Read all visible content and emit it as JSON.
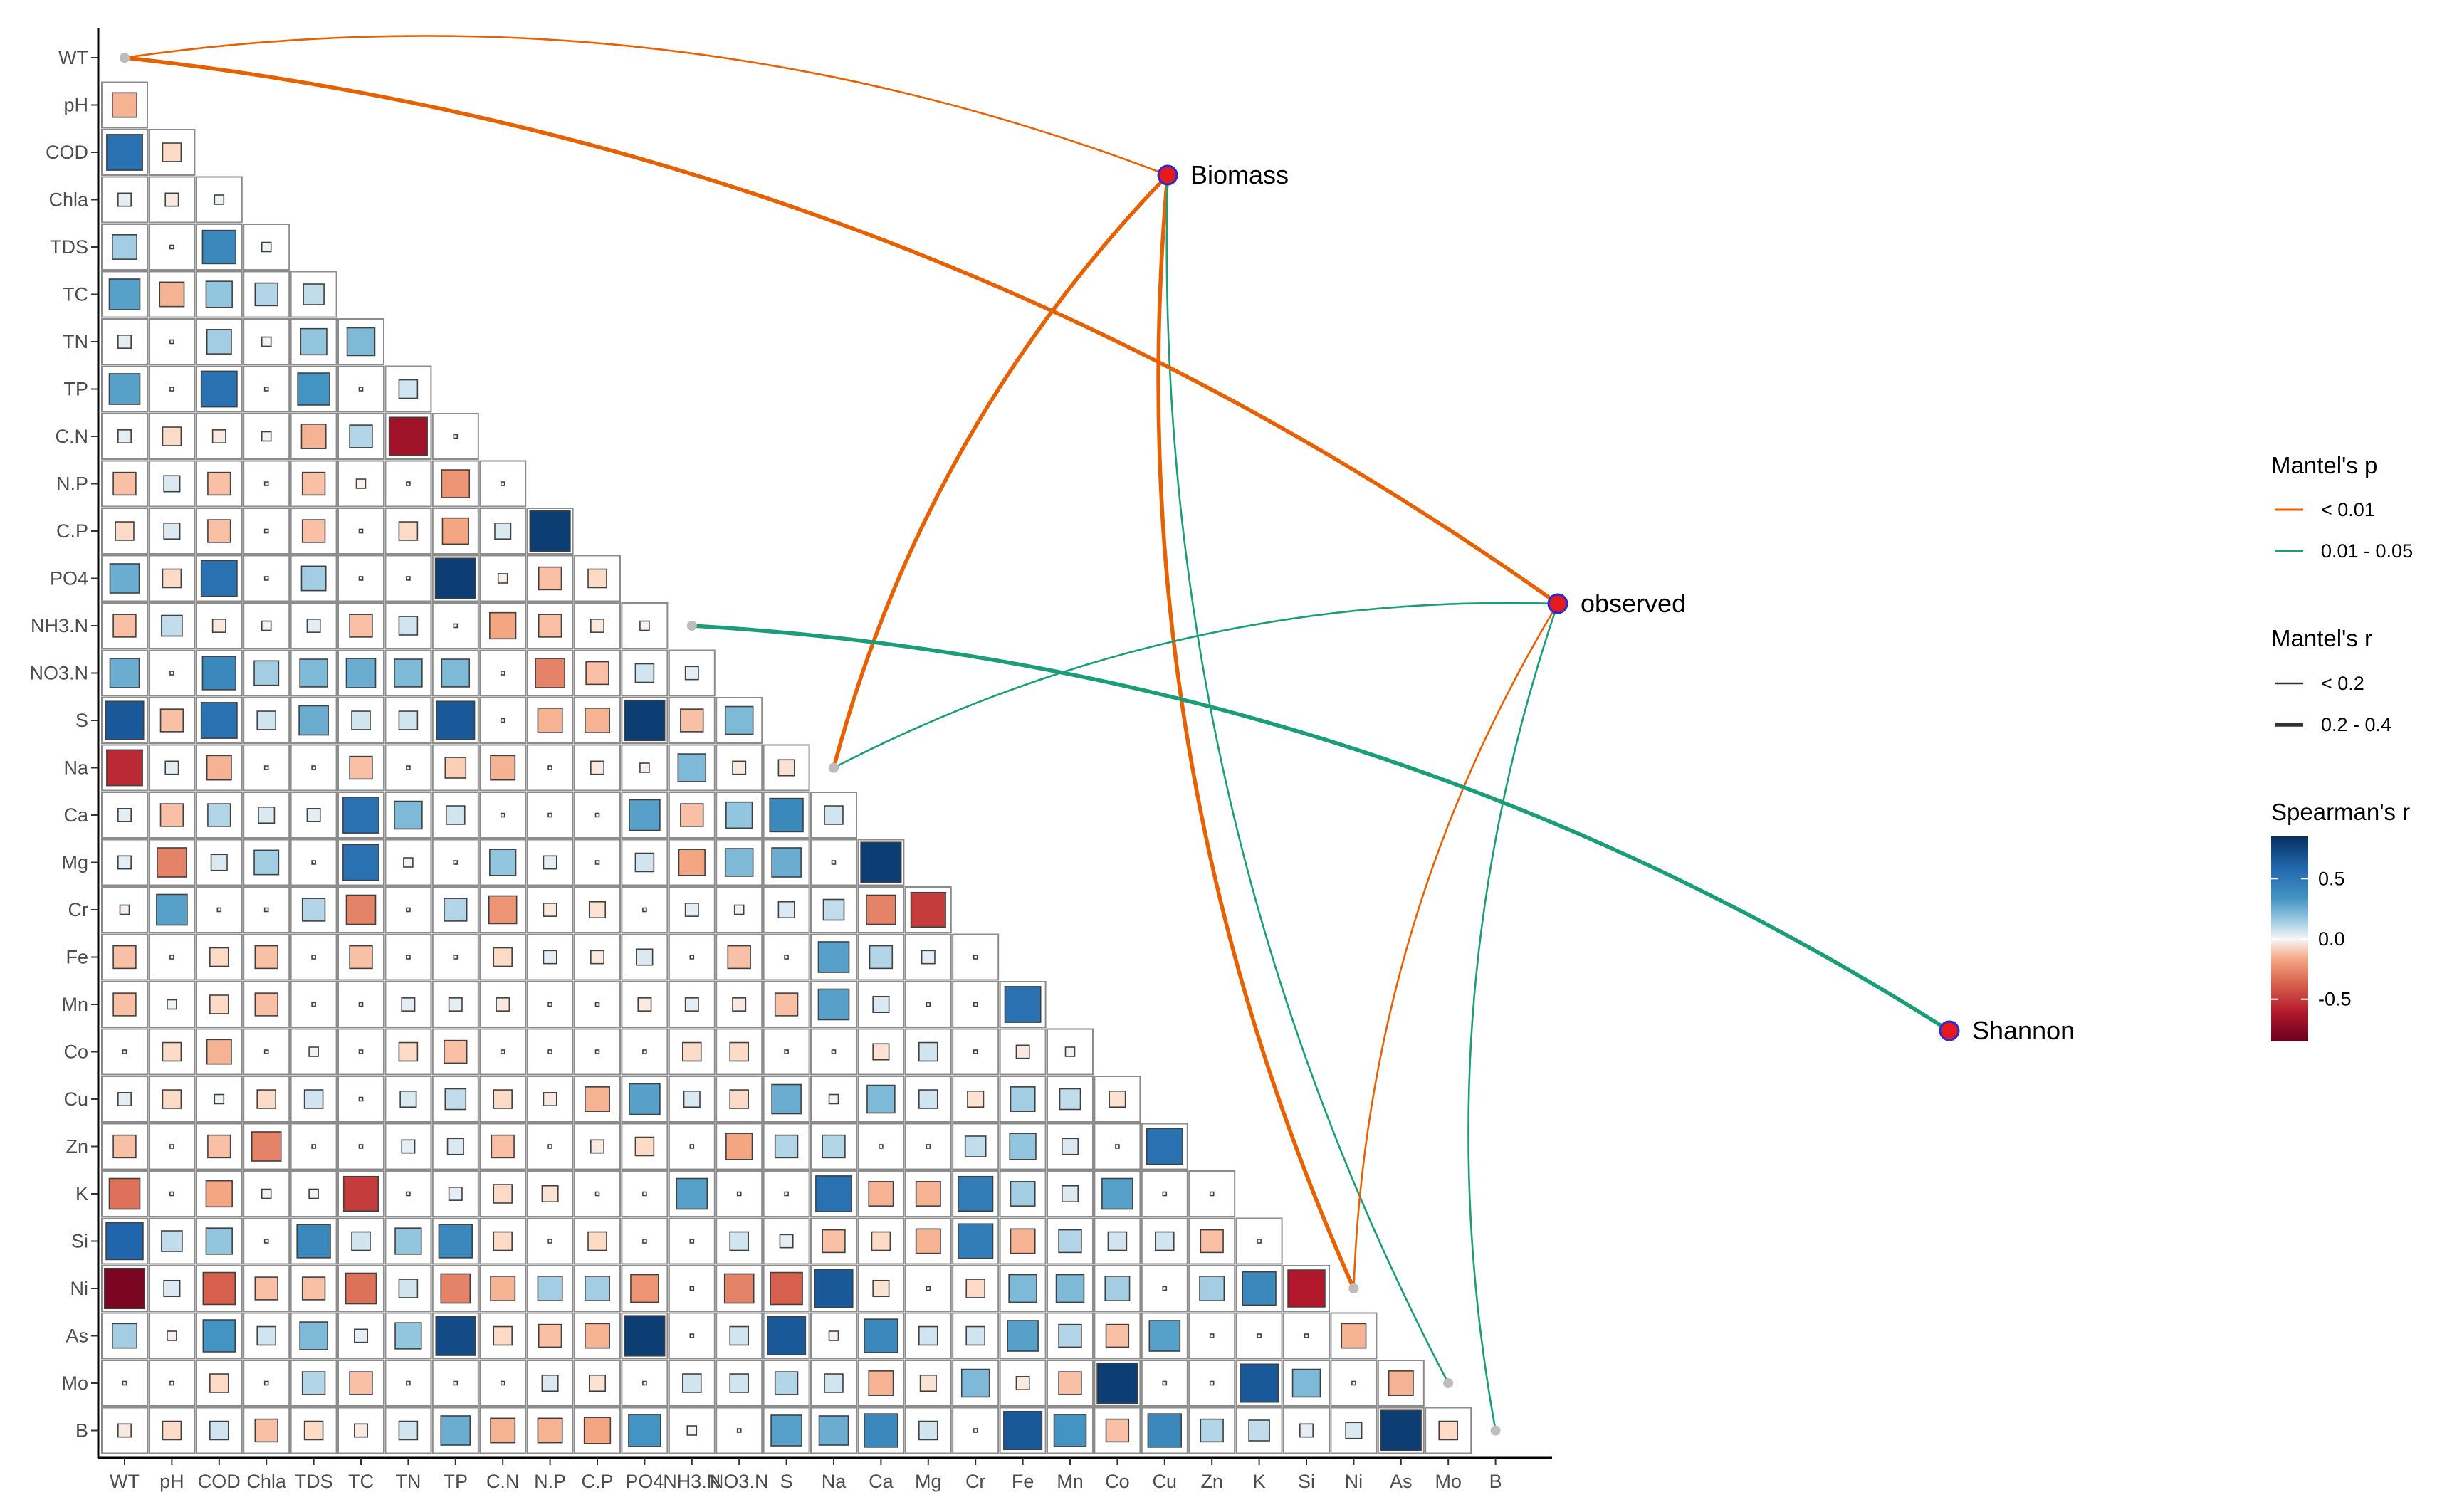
{
  "chart_data": {
    "type": "heatmap",
    "title": "",
    "variables": [
      "WT",
      "pH",
      "COD",
      "Chla",
      "TDS",
      "TC",
      "TN",
      "TP",
      "C.N",
      "N.P",
      "C.P",
      "PO4",
      "NH3.N",
      "NO3.N",
      "S",
      "Na",
      "Ca",
      "Mg",
      "Cr",
      "Fe",
      "Mn",
      "Co",
      "Cu",
      "Zn",
      "K",
      "Si",
      "Ni",
      "As",
      "Mo",
      "B"
    ],
    "x_tick_labels": [
      "WT",
      "pH",
      "COD",
      "Chla",
      "TDS",
      "TC",
      "TN",
      "TP",
      "C.N",
      "N.P",
      "C.P",
      "PO4",
      "NH3.N",
      "NO3.N",
      "S",
      "Na",
      "Ca",
      "Mg",
      "Cr",
      "Fe",
      "Mn",
      "Co",
      "Cu",
      "Zn",
      "K",
      "Si",
      "Ni",
      "As",
      "Mo",
      "B"
    ],
    "y_tick_labels": [
      "WT",
      "pH",
      "COD",
      "Chla",
      "TDS",
      "TC",
      "TN",
      "TP",
      "C.N",
      "N.P",
      "C.P",
      "PO4",
      "NH3.N",
      "NO3.N",
      "S",
      "Na",
      "Ca",
      "Mg",
      "Cr",
      "Fe",
      "Mn",
      "Co",
      "Cu",
      "Zn",
      "K",
      "Si",
      "Ni",
      "As",
      "Mo",
      "B"
    ],
    "correlation_rows": [
      [],
      [
        -0.35
      ],
      [
        0.75,
        -0.2
      ],
      [
        0.1,
        -0.1,
        0.05
      ],
      [
        0.35,
        0.0,
        0.65,
        0.05
      ],
      [
        0.55,
        -0.35,
        0.4,
        0.3,
        0.25
      ],
      [
        0.1,
        0.0,
        0.35,
        0.05,
        0.4,
        0.45
      ],
      [
        0.55,
        0.0,
        0.75,
        0.0,
        0.6,
        0.0,
        0.2
      ],
      [
        0.1,
        -0.2,
        -0.1,
        0.05,
        -0.35,
        0.3,
        -0.85
      ],
      [
        -0.3,
        0.15,
        -0.3,
        0.0,
        -0.3,
        -0.05,
        0.0,
        -0.45,
        0.0
      ],
      [
        -0.2,
        0.15,
        -0.3,
        0.0,
        -0.3,
        0.0,
        -0.2,
        -0.4,
        0.15,
        0.95
      ],
      [
        0.5,
        -0.2,
        0.75,
        0.0,
        0.35,
        0.0,
        0.0,
        0.95,
        -0.05,
        -0.3,
        -0.2
      ],
      [
        -0.3,
        0.25,
        -0.1,
        0.05,
        0.1,
        -0.3,
        0.2,
        0.0,
        -0.4,
        -0.3,
        -0.1,
        -0.05
      ],
      [
        0.5,
        0.0,
        0.65,
        0.35,
        0.45,
        0.5,
        0.45,
        0.45,
        0.0,
        -0.5,
        -0.3,
        0.2,
        0.1
      ],
      [
        0.85,
        -0.3,
        0.75,
        0.2,
        0.5,
        0.2,
        0.2,
        0.85,
        0.0,
        -0.35,
        -0.35,
        0.95,
        -0.3,
        0.45
      ],
      [
        -0.75,
        0.1,
        -0.35,
        0.0,
        0.0,
        -0.3,
        0.0,
        -0.25,
        -0.35,
        0.0,
        -0.1,
        -0.05,
        0.45,
        -0.1,
        -0.15
      ],
      [
        0.1,
        -0.3,
        0.3,
        0.15,
        0.1,
        0.75,
        0.45,
        0.2,
        0.0,
        0.0,
        0.0,
        0.55,
        -0.3,
        0.4,
        0.65,
        0.2
      ],
      [
        0.1,
        -0.5,
        0.15,
        0.35,
        0.0,
        0.75,
        0.05,
        0.0,
        0.4,
        0.1,
        0.0,
        0.2,
        -0.4,
        0.45,
        0.5,
        0.0,
        0.95
      ],
      [
        -0.05,
        0.55,
        0.0,
        0.0,
        0.3,
        -0.5,
        0.0,
        0.3,
        -0.45,
        -0.1,
        -0.15,
        0.0,
        0.1,
        0.05,
        0.15,
        0.25,
        -0.5,
        -0.7
      ],
      [
        -0.3,
        0.0,
        -0.2,
        -0.3,
        0.0,
        -0.3,
        0.0,
        0.0,
        -0.2,
        0.1,
        -0.1,
        0.15,
        0.0,
        -0.3,
        0.0,
        0.55,
        0.3,
        0.1,
        0.0
      ],
      [
        -0.3,
        0.05,
        -0.2,
        -0.3,
        0.0,
        0.0,
        0.1,
        0.1,
        -0.1,
        0.0,
        0.0,
        -0.1,
        0.1,
        -0.1,
        -0.3,
        0.55,
        0.15,
        0.0,
        0.0,
        0.75
      ],
      [
        0.0,
        -0.2,
        -0.35,
        0.0,
        0.05,
        0.0,
        -0.2,
        -0.3,
        0.0,
        0.0,
        0.0,
        0.0,
        -0.2,
        -0.2,
        0.0,
        0.0,
        -0.15,
        0.2,
        0.0,
        -0.1,
        0.05
      ],
      [
        0.1,
        -0.2,
        0.05,
        -0.2,
        0.2,
        0.0,
        0.15,
        0.25,
        -0.2,
        -0.1,
        -0.35,
        0.55,
        0.15,
        -0.2,
        0.5,
        0.05,
        0.45,
        0.2,
        -0.15,
        0.35,
        0.25,
        -0.15
      ],
      [
        -0.3,
        0.0,
        -0.3,
        -0.5,
        0.0,
        0.0,
        0.1,
        0.15,
        -0.3,
        0.0,
        -0.1,
        -0.2,
        0.0,
        -0.4,
        0.3,
        0.3,
        0.0,
        0.0,
        0.25,
        0.4,
        0.15,
        0.0,
        0.75
      ],
      [
        -0.55,
        0.0,
        -0.4,
        0.05,
        0.05,
        -0.7,
        0.0,
        0.1,
        -0.2,
        -0.15,
        0.0,
        0.0,
        0.55,
        0.0,
        0.0,
        0.75,
        -0.35,
        -0.35,
        0.7,
        0.35,
        0.15,
        0.55,
        0.0,
        0.0
      ],
      [
        0.8,
        0.25,
        0.4,
        0.0,
        0.65,
        0.2,
        0.4,
        0.65,
        -0.2,
        0.0,
        -0.2,
        0.0,
        0.0,
        0.2,
        0.1,
        -0.3,
        -0.2,
        -0.35,
        0.7,
        -0.35,
        0.3,
        0.2,
        0.2,
        -0.3,
        0.0
      ],
      [
        -0.95,
        0.15,
        -0.6,
        -0.3,
        -0.3,
        -0.55,
        0.2,
        -0.5,
        -0.35,
        0.35,
        0.35,
        -0.45,
        0.0,
        -0.5,
        -0.6,
        0.85,
        -0.15,
        0.0,
        -0.2,
        0.45,
        0.45,
        0.35,
        0.0,
        0.35,
        0.65,
        -0.8
      ],
      [
        0.35,
        -0.05,
        0.6,
        0.2,
        0.45,
        0.1,
        0.4,
        0.9,
        -0.2,
        -0.3,
        -0.35,
        0.95,
        0.0,
        0.2,
        0.85,
        -0.05,
        0.65,
        0.2,
        0.2,
        0.55,
        0.3,
        -0.3,
        0.55,
        0.0,
        0.0,
        0.0,
        -0.35
      ],
      [
        0.0,
        0.0,
        -0.2,
        0.0,
        0.3,
        -0.3,
        0.0,
        0.0,
        0.0,
        0.15,
        -0.15,
        0.0,
        0.2,
        0.2,
        0.3,
        0.2,
        -0.35,
        -0.15,
        0.45,
        -0.1,
        -0.3,
        0.95,
        0.0,
        0.0,
        0.85,
        0.45,
        0.0,
        -0.35
      ],
      [
        -0.1,
        -0.2,
        0.2,
        -0.3,
        -0.2,
        -0.1,
        0.2,
        0.5,
        -0.35,
        -0.35,
        -0.4,
        0.6,
        0.05,
        0.0,
        0.55,
        0.5,
        0.65,
        0.2,
        0.0,
        0.85,
        0.6,
        -0.3,
        0.65,
        0.3,
        0.25,
        0.1,
        0.15,
        0.95,
        -0.2
      ]
    ],
    "color_scale": {
      "low": "#67001F",
      "mid": "#F7F7F7",
      "high": "#053061"
    },
    "mantel_nodes": [
      "Biomass",
      "observed",
      "Shannon"
    ],
    "mantel_links": [
      {
        "from": "Biomass",
        "to": "WT",
        "p_class": "< 0.01",
        "r_class": "< 0.2"
      },
      {
        "from": "Biomass",
        "to": "Na",
        "p_class": "< 0.01",
        "r_class": "0.2 - 0.4"
      },
      {
        "from": "Biomass",
        "to": "Ni",
        "p_class": "< 0.01",
        "r_class": "0.2 - 0.4"
      },
      {
        "from": "Biomass",
        "to": "Mo",
        "p_class": "0.01 - 0.05",
        "r_class": "< 0.2"
      },
      {
        "from": "observed",
        "to": "WT",
        "p_class": "< 0.01",
        "r_class": "0.2 - 0.4"
      },
      {
        "from": "observed",
        "to": "Na",
        "p_class": "0.01 - 0.05",
        "r_class": "< 0.2"
      },
      {
        "from": "observed",
        "to": "Ni",
        "p_class": "< 0.01",
        "r_class": "< 0.2"
      },
      {
        "from": "observed",
        "to": "B",
        "p_class": "0.01 - 0.05",
        "r_class": "< 0.2"
      },
      {
        "from": "Shannon",
        "to": "NH3.N",
        "p_class": "0.01 - 0.05",
        "r_class": "0.2 - 0.4"
      }
    ],
    "legend": {
      "mantel_p_title": "Mantel's p",
      "mantel_p_items": [
        {
          "label": "< 0.01",
          "color": "#E66101"
        },
        {
          "label": "0.01 - 0.05",
          "color": "#1B9E77"
        }
      ],
      "mantel_r_title": "Mantel's r",
      "mantel_r_items": [
        {
          "label": "< 0.2"
        },
        {
          "label": "0.2 - 0.4"
        }
      ],
      "spearman_title": "Spearman's r",
      "spearman_ticks": [
        {
          "value": 0.5,
          "label": "0.5"
        },
        {
          "value": 0.0,
          "label": "0.0"
        },
        {
          "value": -0.5,
          "label": "-0.5"
        }
      ],
      "spearman_range": [
        -0.85,
        0.85
      ]
    },
    "grid": false,
    "legend_placement": "right"
  }
}
